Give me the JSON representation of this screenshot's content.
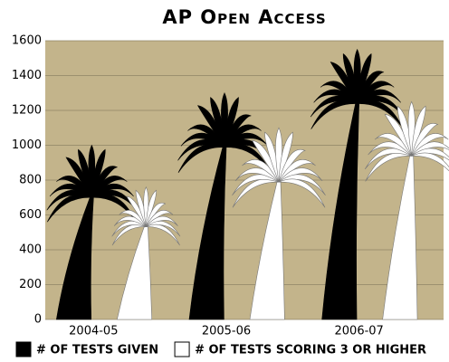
{
  "chart_data": {
    "type": "pictograph-bar",
    "title": "AP Open Access",
    "categories": [
      "2004-05",
      "2005-06",
      "2006-07"
    ],
    "series": [
      {
        "name": "# of tests given",
        "color": "#000000",
        "values": [
          1000,
          1300,
          1550
        ]
      },
      {
        "name": "# of tests scoring 3 or higher",
        "color": "#ffffff",
        "values": [
          760,
          1100,
          1250
        ]
      }
    ],
    "ylim": [
      0,
      1600
    ],
    "yticks": [
      0,
      200,
      400,
      600,
      800,
      1000,
      1200,
      1400,
      1600
    ],
    "grid": true,
    "background": "#c3b48b"
  }
}
